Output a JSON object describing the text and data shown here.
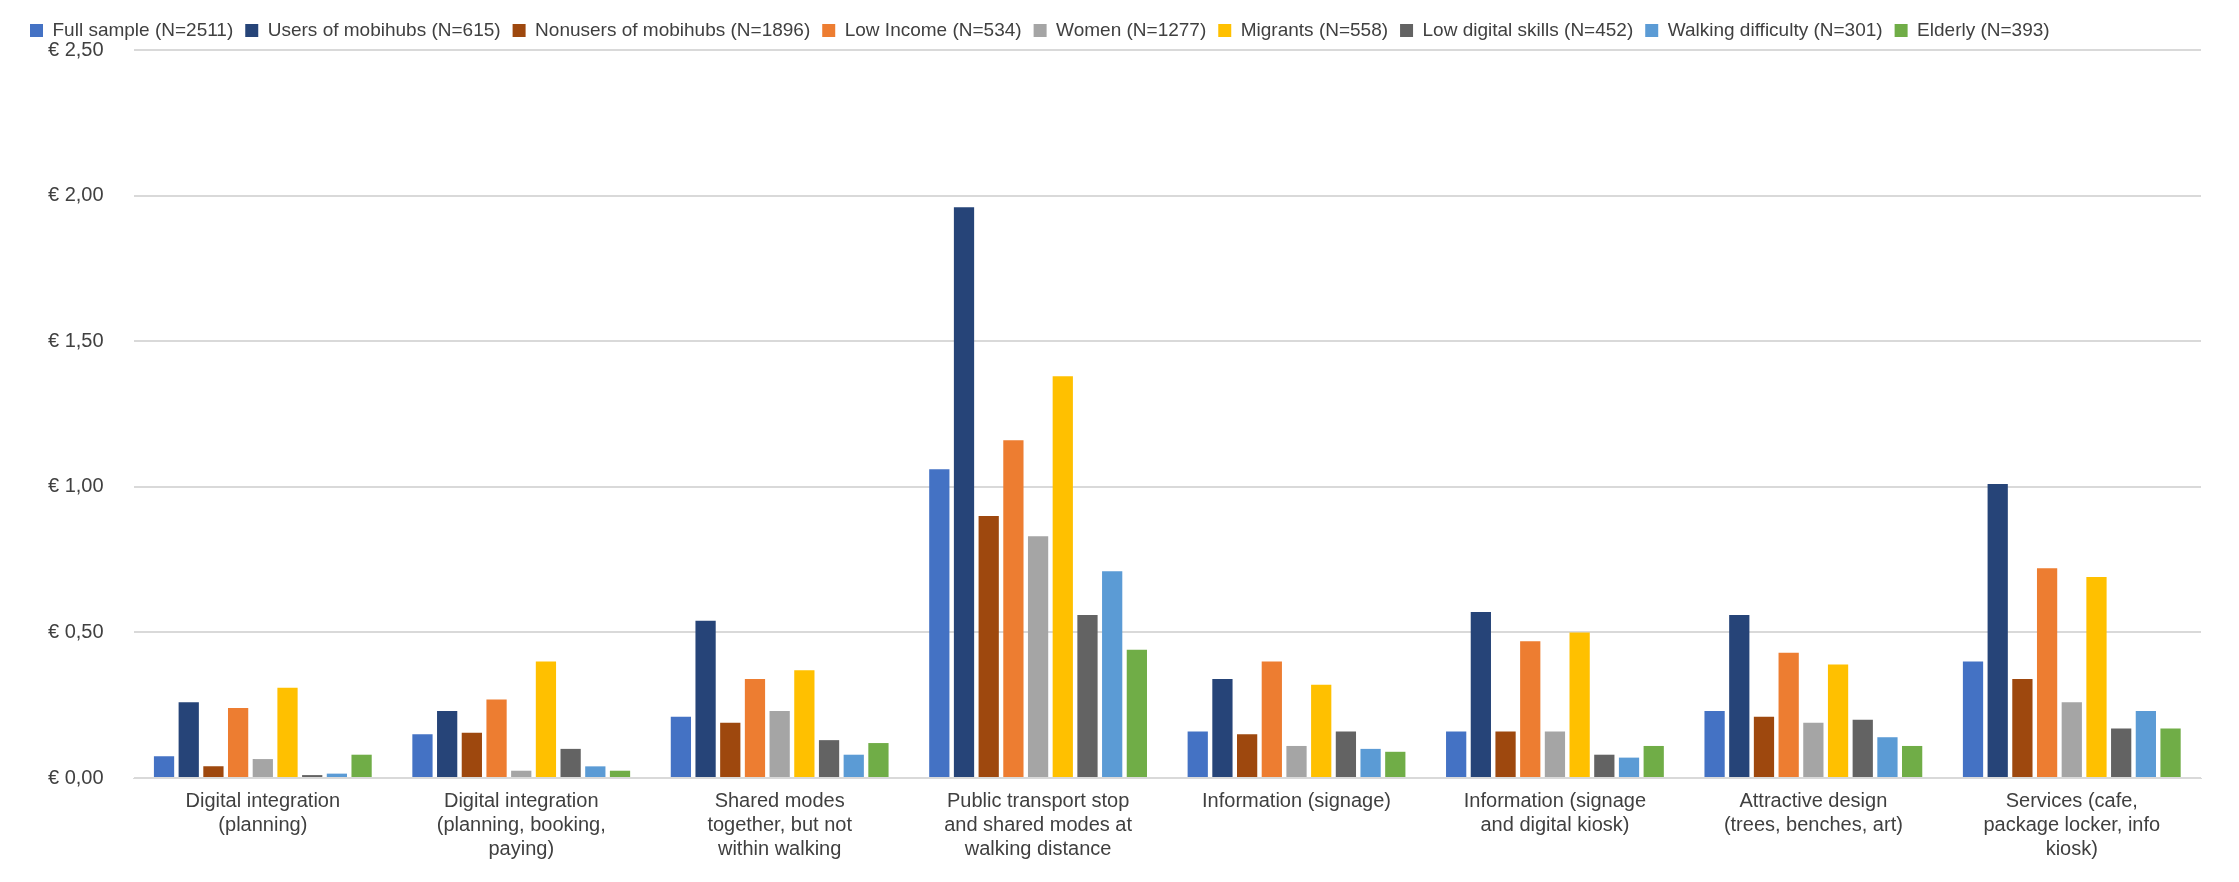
{
  "chart_data": {
    "type": "bar",
    "categories": [
      "Digital integration (planning)",
      "Digital integration (planning, booking, paying)",
      "Shared modes together, but not within walking",
      "Public transport stop and shared modes at walking distance",
      "Information (signage)",
      "Information (signage and digital kiosk)",
      "Attractive design (trees, benches, art)",
      "Services (cafe, package locker, info kiosk)"
    ],
    "series": [
      {
        "name": "Full sample (N=2511)",
        "color": "#4472c4",
        "values": [
          0.075,
          0.15,
          0.21,
          1.06,
          0.16,
          0.16,
          0.23,
          0.4
        ]
      },
      {
        "name": "Users of mobihubs (N=615)",
        "color": "#264478",
        "values": [
          0.26,
          0.23,
          0.54,
          1.96,
          0.34,
          0.57,
          0.56,
          1.01
        ]
      },
      {
        "name": "Nonusers of mobihubs (N=1896)",
        "color": "#9e480e",
        "values": [
          0.04,
          0.155,
          0.19,
          0.9,
          0.15,
          0.16,
          0.21,
          0.34
        ]
      },
      {
        "name": "Low Income (N=534)",
        "color": "#ed7d31",
        "values": [
          0.24,
          0.27,
          0.34,
          1.16,
          0.4,
          0.47,
          0.43,
          0.72
        ]
      },
      {
        "name": "Women (N=1277)",
        "color": "#a5a5a5",
        "values": [
          0.065,
          0.025,
          0.23,
          0.83,
          0.11,
          0.16,
          0.19,
          0.26
        ]
      },
      {
        "name": "Migrants (N=558)",
        "color": "#ffc000",
        "values": [
          0.31,
          0.4,
          0.37,
          1.38,
          0.32,
          0.5,
          0.39,
          0.69
        ]
      },
      {
        "name": "Low digital skills (N=452)",
        "color": "#636363",
        "values": [
          0.01,
          0.1,
          0.13,
          0.56,
          0.16,
          0.08,
          0.2,
          0.17
        ]
      },
      {
        "name": "Walking difficulty (N=301)",
        "color": "#5b9bd5",
        "values": [
          0.015,
          0.04,
          0.08,
          0.71,
          0.1,
          0.07,
          0.14,
          0.23
        ]
      },
      {
        "name": "Elderly (N=393)",
        "color": "#70ad47",
        "values": [
          0.08,
          0.025,
          0.12,
          0.44,
          0.09,
          0.11,
          0.11,
          0.17
        ]
      }
    ],
    "ylim": [
      0,
      2.5
    ],
    "yticks": [
      {
        "value": 0,
        "label": "€ 0,00"
      },
      {
        "value": 0.5,
        "label": "€ 0,50"
      },
      {
        "value": 1,
        "label": "€ 1,00"
      },
      {
        "value": 1.5,
        "label": "€ 1,50"
      },
      {
        "value": 2,
        "label": "€ 2,00"
      },
      {
        "value": 2.5,
        "label": "€ 2,50"
      }
    ],
    "grid": "y",
    "legend": "top"
  }
}
